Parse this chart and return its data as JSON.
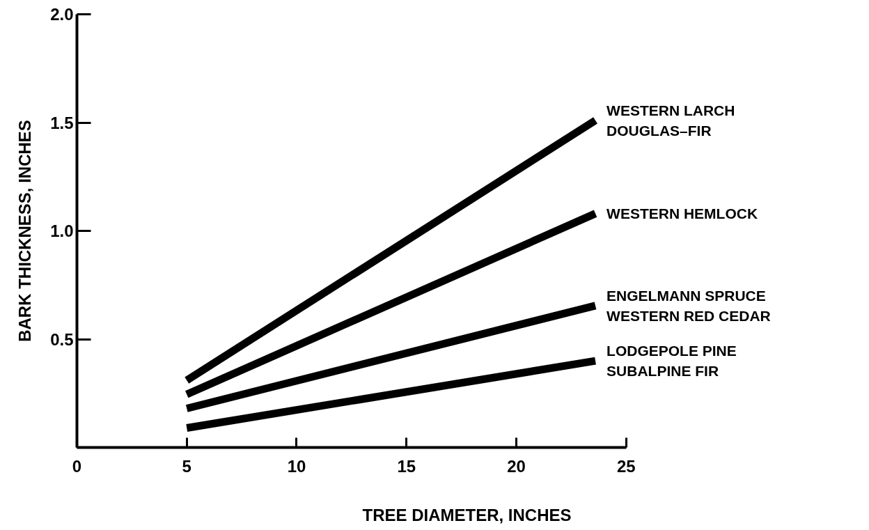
{
  "chart_data": {
    "type": "line",
    "xlabel": "TREE DIAMETER, INCHES",
    "ylabel": "BARK THICKNESS, INCHES",
    "xlim": [
      0,
      25
    ],
    "ylim": [
      0,
      2.0
    ],
    "xticks": [
      0,
      5,
      10,
      15,
      20,
      25
    ],
    "yticks": [
      {
        "value": 0,
        "label": null
      },
      {
        "value": 0.5,
        "label": "0.5"
      },
      {
        "value": 1.0,
        "label": "1.0"
      },
      {
        "value": 1.5,
        "label": "1.5"
      },
      {
        "value": 2.0,
        "label": "2.0"
      }
    ],
    "x": [
      5,
      23.6
    ],
    "series": [
      {
        "name": "WESTERN LARCH\nDOUGLAS–FIR",
        "color": "#000000",
        "values": [
          0.31,
          1.51
        ]
      },
      {
        "name": "WESTERN HEMLOCK",
        "color": "#000000",
        "values": [
          0.245,
          1.08
        ]
      },
      {
        "name": "ENGELMANN SPRUCE\nWESTERN RED CEDAR",
        "color": "#000000",
        "values": [
          0.18,
          0.655
        ]
      },
      {
        "name": "LODGEPOLE PINE\nSUBALPINE FIR",
        "color": "#000000",
        "values": [
          0.09,
          0.4
        ]
      }
    ],
    "grid": false,
    "legend": false,
    "marker": "none",
    "line_style": "solid"
  }
}
